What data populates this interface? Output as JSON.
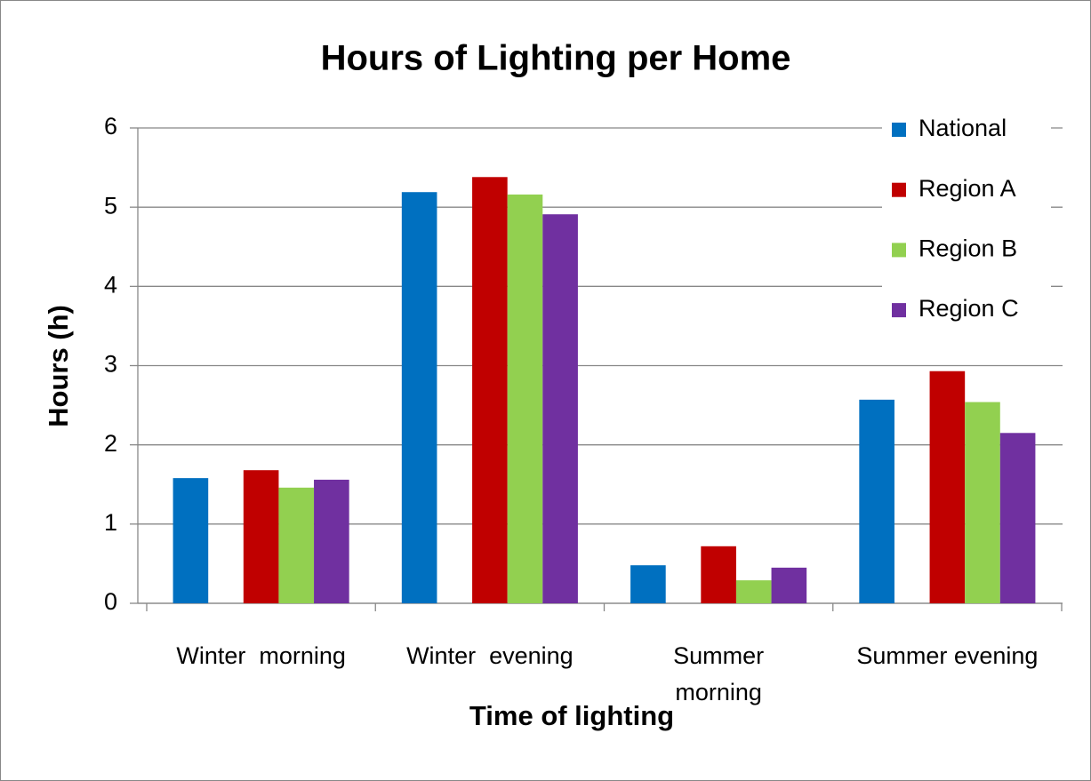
{
  "chart_data": {
    "type": "bar",
    "title": "Hours of Lighting per Home",
    "x_label": "Time of lighting",
    "y_label": "Hours (h)",
    "categories": [
      "Winter  morning",
      "Winter  evening",
      [
        "Summer",
        "morning"
      ],
      "Summer evening"
    ],
    "series": [
      {
        "name": "National",
        "color": "#0070c0",
        "values": [
          1.58,
          5.19,
          0.48,
          2.57
        ]
      },
      {
        "name": "Region A",
        "color": "#c00000",
        "values": [
          1.68,
          5.38,
          0.72,
          2.93
        ]
      },
      {
        "name": "Region B",
        "color": "#92d050",
        "values": [
          1.46,
          5.16,
          0.29,
          2.54
        ]
      },
      {
        "name": "Region C",
        "color": "#7030a0",
        "values": [
          1.56,
          4.91,
          0.45,
          2.15
        ]
      }
    ],
    "ylim": [
      0,
      6
    ],
    "yticks": [
      0,
      1,
      2,
      3,
      4,
      5,
      6
    ],
    "grid": true,
    "legend": "upper right"
  }
}
